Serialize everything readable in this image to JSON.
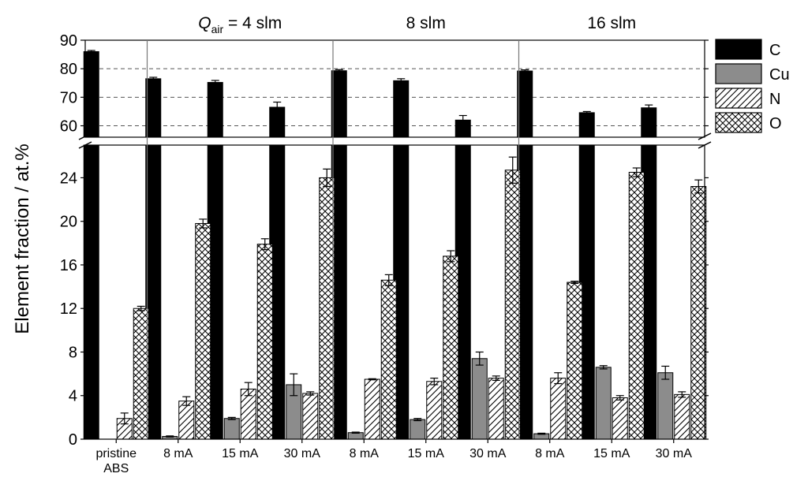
{
  "chart_data": {
    "type": "bar",
    "ylabel": "Element fraction / at.%",
    "broken_axis": true,
    "lower_ylim": [
      0,
      27
    ],
    "upper_ylim": [
      56,
      90
    ],
    "lower_ticks": [
      0,
      4,
      8,
      12,
      16,
      20,
      24
    ],
    "upper_ticks": [
      60,
      70,
      80,
      90
    ],
    "upper_grid_dashed": true,
    "categories": [
      {
        "line1": "pristine",
        "line2": "ABS"
      },
      {
        "line1": "8 mA",
        "line2": ""
      },
      {
        "line1": "15 mA",
        "line2": ""
      },
      {
        "line1": "30 mA",
        "line2": ""
      },
      {
        "line1": "8 mA",
        "line2": ""
      },
      {
        "line1": "15 mA",
        "line2": ""
      },
      {
        "line1": "30 mA",
        "line2": ""
      },
      {
        "line1": "8 mA",
        "line2": ""
      },
      {
        "line1": "15 mA",
        "line2": ""
      },
      {
        "line1": "30 mA",
        "line2": ""
      }
    ],
    "groups": [
      {
        "label_prefix": "Q",
        "label_sub": "air",
        "label_suffix": " = 4 slm",
        "categories": [
          1,
          2,
          3
        ]
      },
      {
        "label_prefix": "",
        "label_sub": "",
        "label_suffix": "8 slm",
        "categories": [
          4,
          5,
          6
        ]
      },
      {
        "label_prefix": "",
        "label_sub": "",
        "label_suffix": "16 slm",
        "categories": [
          7,
          8,
          9
        ]
      }
    ],
    "series": [
      {
        "name": "C",
        "pattern": "solid-black",
        "values": [
          86.0,
          76.5,
          75.2,
          66.5,
          79.3,
          75.8,
          62.0,
          79.2,
          64.6,
          66.3
        ],
        "errors": [
          0.4,
          0.5,
          0.7,
          1.8,
          0.4,
          0.7,
          1.6,
          0.4,
          0.4,
          1.0
        ]
      },
      {
        "name": "Cu",
        "pattern": "solid-gray",
        "values": [
          0.0,
          0.25,
          1.9,
          5.0,
          0.6,
          1.8,
          7.4,
          0.5,
          6.6,
          6.1
        ],
        "errors": [
          0.0,
          0.05,
          0.1,
          1.0,
          0.05,
          0.1,
          0.6,
          0.05,
          0.15,
          0.6
        ]
      },
      {
        "name": "N",
        "pattern": "diagonal-lines",
        "values": [
          1.9,
          3.5,
          4.6,
          4.2,
          5.5,
          5.3,
          5.6,
          5.6,
          3.8,
          4.1
        ],
        "errors": [
          0.5,
          0.4,
          0.6,
          0.15,
          0.05,
          0.3,
          0.2,
          0.5,
          0.2,
          0.25
        ]
      },
      {
        "name": "O",
        "pattern": "crosshatch",
        "values": [
          12.0,
          19.8,
          17.9,
          24.0,
          14.6,
          16.8,
          24.7,
          14.4,
          24.5,
          23.2
        ],
        "errors": [
          0.2,
          0.4,
          0.5,
          0.8,
          0.5,
          0.5,
          1.2,
          0.1,
          0.4,
          0.6
        ]
      }
    ],
    "legend": {
      "placement": "right"
    }
  }
}
